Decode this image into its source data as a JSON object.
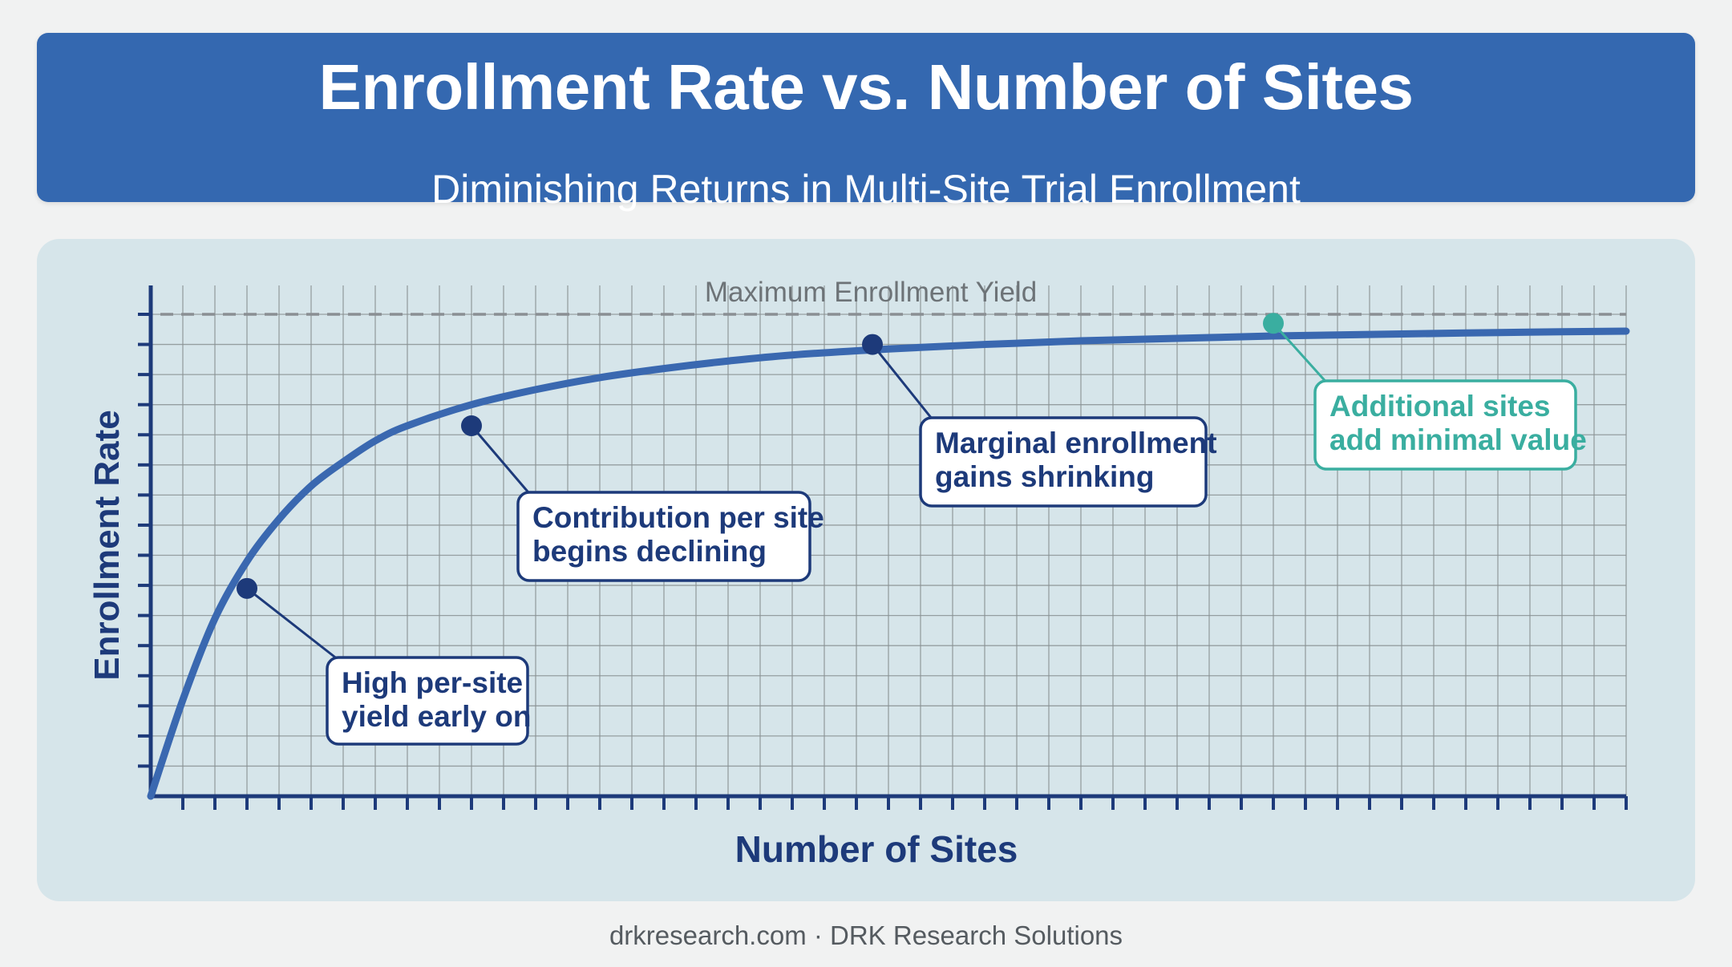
{
  "header": {
    "title": "Enrollment Rate vs. Number of Sites",
    "subtitle": "Diminishing Returns in Multi-Site Trial Enrollment"
  },
  "chart_data": {
    "type": "line",
    "xlabel": "Number of Sites",
    "ylabel": "Enrollment Rate",
    "xlim": [
      0,
      46
    ],
    "ylim": [
      0,
      16
    ],
    "grid": true,
    "tick_labels_shown": false,
    "series": [
      {
        "x": [
          0,
          1,
          2,
          3,
          4,
          5,
          6,
          7,
          8,
          10,
          12,
          14,
          16,
          18,
          20,
          23,
          26,
          29,
          32,
          35,
          38,
          41,
          44,
          46
        ],
        "y": [
          0,
          3.2,
          5.9,
          7.8,
          9.2,
          10.3,
          11.1,
          11.8,
          12.3,
          13.0,
          13.5,
          13.9,
          14.2,
          14.45,
          14.65,
          14.85,
          15.0,
          15.12,
          15.2,
          15.28,
          15.33,
          15.38,
          15.42,
          15.44
        ],
        "color": "#3a68b0"
      }
    ],
    "reference_line": {
      "y": 16,
      "label": "Maximum Enrollment Yield",
      "style": "dashed",
      "color": "#8a8f93"
    },
    "annotations": [
      {
        "x": 3,
        "y": 6.9,
        "text": [
          "High per-site",
          "yield early on"
        ],
        "color": "#1d3a7a"
      },
      {
        "x": 10,
        "y": 12.3,
        "text": [
          "Contribution per site",
          "begins declining"
        ],
        "color": "#1d3a7a"
      },
      {
        "x": 22.5,
        "y": 15.0,
        "text": [
          "Marginal enrollment",
          "gains shrinking"
        ],
        "color": "#1d3a7a"
      },
      {
        "x": 35,
        "y": 15.7,
        "text": [
          "Additional sites",
          "add minimal value"
        ],
        "color": "#3aaea0"
      }
    ],
    "colors": {
      "curve": "#3a68b0",
      "axis": "#1d3a7a",
      "grid": "#8a9294",
      "accent": "#3aaea0"
    }
  },
  "footer": {
    "text": "drkresearch.com · DRK Research Solutions"
  }
}
